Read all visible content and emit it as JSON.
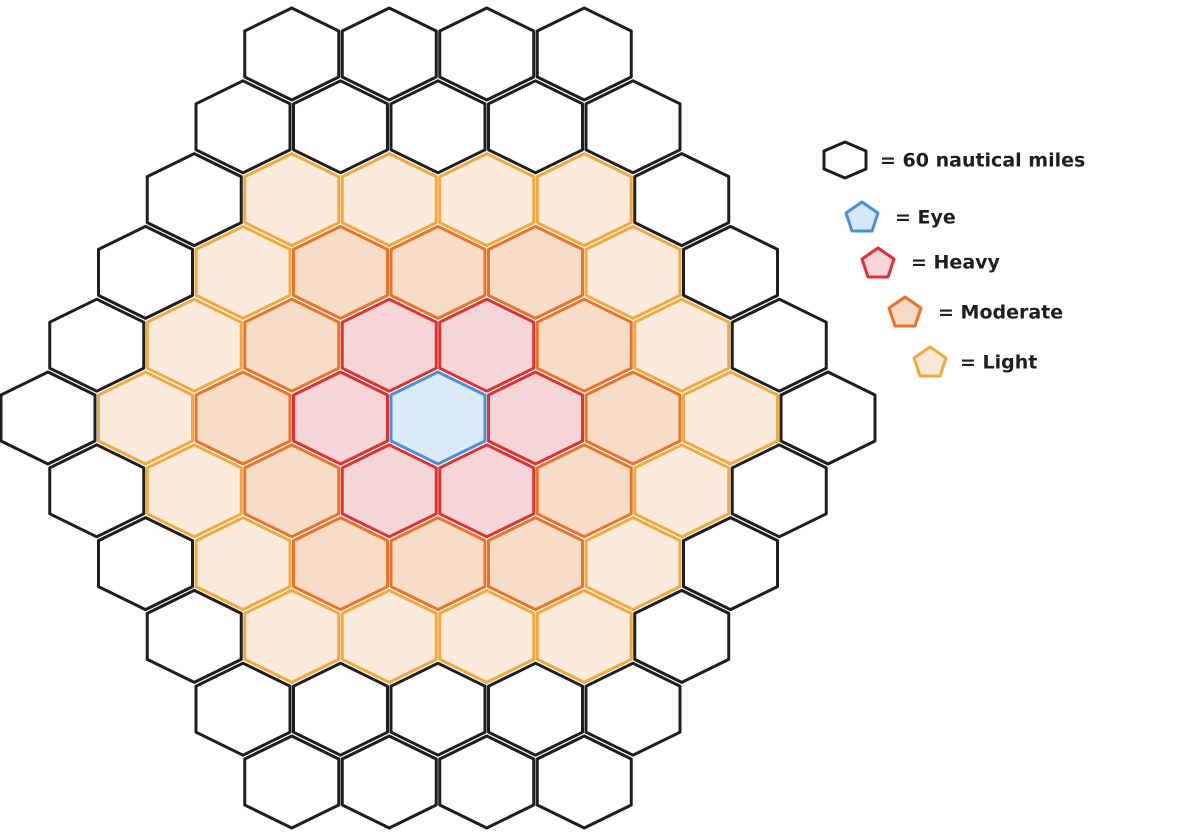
{
  "legend": [
    {
      "label": "= 60 nautical miles"
    },
    {
      "label": "= Eye"
    },
    {
      "label": "= Heavy"
    },
    {
      "label": "= Moderate"
    },
    {
      "label": "= Light"
    }
  ]
}
